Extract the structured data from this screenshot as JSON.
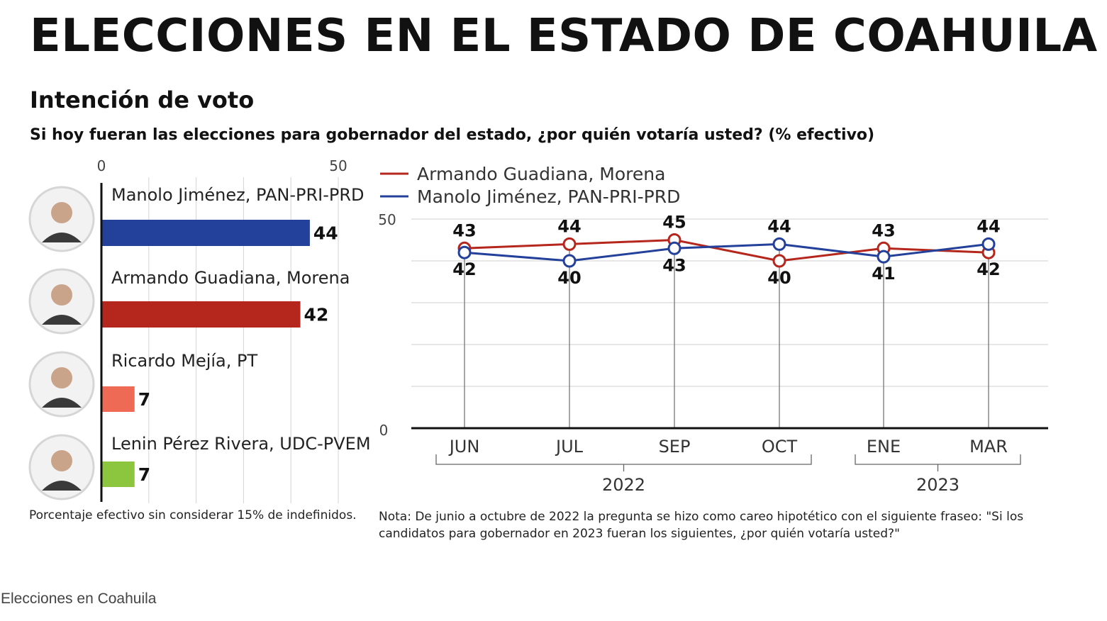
{
  "header": {
    "title": "ELECCIONES EN EL ESTADO DE COAHUILA",
    "subtitle": "Intención de voto",
    "question": "Si hoy fueran las elecciones para gobernador del estado, ¿por quién votaría usted? (% efectivo)"
  },
  "chart_data": [
    {
      "type": "bar",
      "orientation": "horizontal",
      "axis_ticks": [
        "0",
        "50"
      ],
      "xlim": [
        0,
        50
      ],
      "categories": [
        "Manolo Jiménez, PAN-PRI-PRD",
        "Armando Guadiana, Morena",
        "Ricardo Mejía, PT",
        "Lenin Pérez Rivera, UDC-PVEM"
      ],
      "values": [
        44,
        42,
        7,
        7
      ],
      "colors": [
        "#23409a",
        "#b5271d",
        "#ee6a55",
        "#8cc63f"
      ],
      "grid": true,
      "footnote": "Porcentaje efectivo sin considerar 15% de indefinidos."
    },
    {
      "type": "line",
      "categories": [
        "JUN",
        "JUL",
        "SEP",
        "OCT",
        "ENE",
        "MAR"
      ],
      "year_groups": [
        {
          "label": "2022",
          "from": 0,
          "to": 3
        },
        {
          "label": "2023",
          "from": 4,
          "to": 5
        }
      ],
      "ylim": [
        0,
        50
      ],
      "y_ticks": [
        "0",
        "50"
      ],
      "grid": true,
      "legend_position": "top-left",
      "series": [
        {
          "name": "Armando Guadiana, Morena",
          "color": "#b5271d",
          "values": [
            43,
            44,
            45,
            40,
            43,
            42
          ]
        },
        {
          "name": "Manolo Jiménez, PAN-PRI-PRD",
          "color": "#23409a",
          "values": [
            42,
            40,
            43,
            44,
            41,
            44
          ]
        }
      ],
      "note": "Nota: De junio a octubre de 2022 la pregunta se hizo como careo hipotético con el siguiente fraseo: \"Si los candidatos para gobernador en 2023 fueran los siguientes, ¿por quién votaría usted?\""
    }
  ],
  "caption": "Elecciones en Coahuila",
  "icons": [
    "candidate-photo",
    "candidate-photo",
    "candidate-photo",
    "candidate-photo"
  ]
}
